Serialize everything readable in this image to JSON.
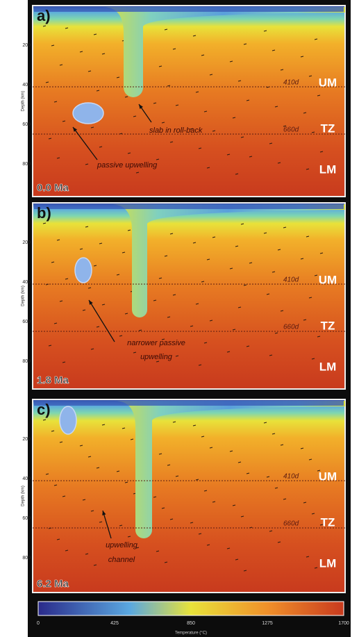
{
  "panels": [
    {
      "letter": "a)",
      "time": "0.0 Ma",
      "y_label": "Depth (km)",
      "yticks": [
        "200",
        "400",
        "600",
        "800"
      ],
      "layers": [
        "UM",
        "TZ",
        "LM"
      ],
      "discontinuities": [
        "410d",
        "660d"
      ],
      "notes": [
        "slab in roll-back",
        "passive upwelling"
      ]
    },
    {
      "letter": "b)",
      "time": "1.8 Ma",
      "y_label": "Depth (km)",
      "yticks": [
        "200",
        "400",
        "600",
        "800"
      ],
      "layers": [
        "UM",
        "TZ",
        "LM"
      ],
      "discontinuities": [
        "410d",
        "660d"
      ],
      "notes": [
        "narrower passive",
        "upwelling"
      ]
    },
    {
      "letter": "c)",
      "time": "6.2 Ma",
      "y_label": "Depth (km)",
      "yticks": [
        "200",
        "400",
        "600",
        "800"
      ],
      "layers": [
        "UM",
        "TZ",
        "LM"
      ],
      "discontinuities": [
        "410d",
        "660d"
      ],
      "notes": [
        "upwelling",
        "channel"
      ]
    }
  ],
  "colorbar": {
    "ticks": [
      "0",
      "425",
      "850",
      "1275",
      "1700"
    ],
    "label": "Temperature (°C)"
  }
}
